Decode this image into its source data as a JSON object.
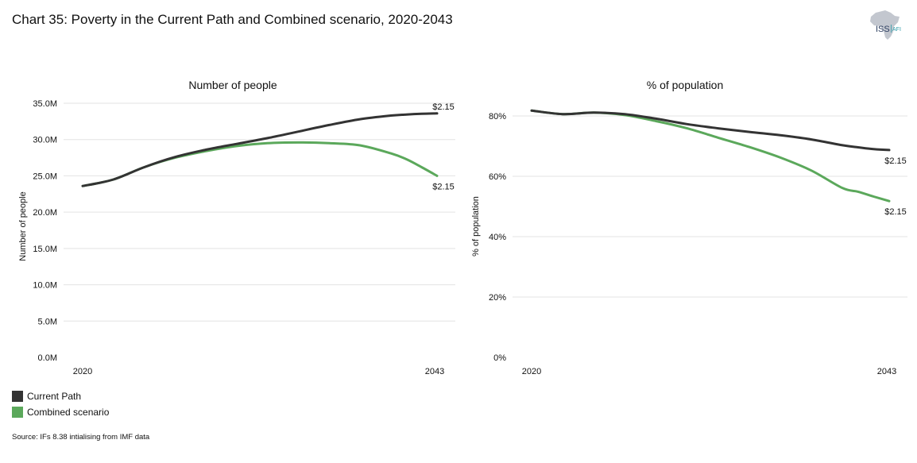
{
  "title": "Chart 35: Poverty in the Current Path and Combined scenario, 2020-2043",
  "logo": {
    "text_main": "ISS",
    "text_sub": "AFI"
  },
  "legend": [
    {
      "name": "Current Path",
      "color": "#333333"
    },
    {
      "name": "Combined scenario",
      "color": "#5ba85b"
    }
  ],
  "source": "Source: IFs 8.38 intialising from IMF data",
  "chart_data": [
    {
      "type": "line",
      "title": "Number of people",
      "xlabel": "",
      "ylabel": "Number of people",
      "x": [
        2020,
        2022,
        2024,
        2026,
        2028,
        2030,
        2032,
        2034,
        2036,
        2038,
        2040,
        2041,
        2042,
        2043
      ],
      "x_tick_labels": [
        "2020",
        "2043"
      ],
      "y_tick_values": [
        0,
        5,
        10,
        15,
        20,
        25,
        30,
        35
      ],
      "y_tick_labels": [
        "0.0M",
        "5.0M",
        "10.0M",
        "15.0M",
        "20.0M",
        "25.0M",
        "30.0M",
        "35.0M"
      ],
      "ylim": [
        0,
        35
      ],
      "series": [
        {
          "name": "Current Path",
          "color": "#333333",
          "end_label": "$2.15",
          "end_label_pos": "above",
          "values": [
            23.6,
            24.5,
            26.2,
            27.6,
            28.6,
            29.4,
            30.2,
            31.1,
            32.0,
            32.8,
            33.3,
            33.45,
            33.55,
            33.6
          ]
        },
        {
          "name": "Combined scenario",
          "color": "#5ba85b",
          "end_label": "$2.15",
          "end_label_pos": "below",
          "values": [
            23.6,
            24.5,
            26.2,
            27.5,
            28.4,
            29.1,
            29.5,
            29.6,
            29.5,
            29.2,
            28.1,
            27.3,
            26.2,
            25.0
          ]
        }
      ],
      "grid": true,
      "legend": "bottom-left"
    },
    {
      "type": "line",
      "title": "% of population",
      "xlabel": "",
      "ylabel": "% of population",
      "x": [
        2020,
        2022,
        2024,
        2026,
        2028,
        2030,
        2032,
        2034,
        2036,
        2038,
        2040,
        2041,
        2042,
        2043
      ],
      "x_tick_labels": [
        "2020",
        "2043"
      ],
      "y_tick_values": [
        0,
        20,
        40,
        60,
        80
      ],
      "y_tick_labels": [
        "0%",
        "20%",
        "40%",
        "60%",
        "80%"
      ],
      "ylim": [
        0,
        80
      ],
      "series": [
        {
          "name": "Current Path",
          "color": "#333333",
          "end_label": "$2.15",
          "end_label_pos": "below",
          "values": [
            81.8,
            80.6,
            81.1,
            80.6,
            79.1,
            77.3,
            75.9,
            74.7,
            73.6,
            72.2,
            70.3,
            69.6,
            69.0,
            68.7
          ]
        },
        {
          "name": "Combined scenario",
          "color": "#5ba85b",
          "end_label": "$2.15",
          "end_label_pos": "below",
          "values": [
            81.8,
            80.6,
            81.1,
            80.3,
            78.3,
            75.9,
            72.8,
            69.7,
            66.2,
            61.9,
            56.1,
            54.9,
            53.3,
            51.8
          ]
        }
      ],
      "grid": true,
      "legend": "bottom-left"
    }
  ]
}
